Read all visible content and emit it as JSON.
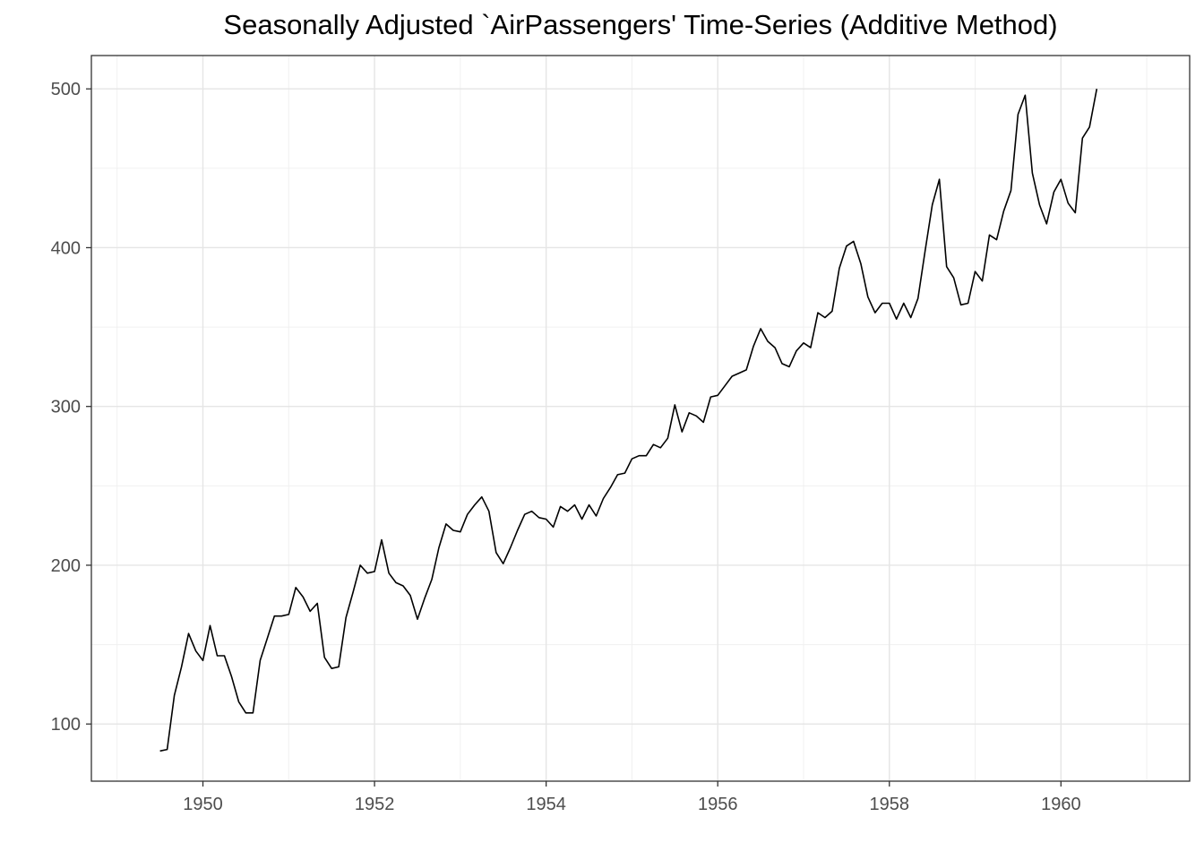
{
  "chart_data": {
    "type": "line",
    "title": "Seasonally Adjusted `AirPassengers' Time-Series (Additive Method)",
    "xlabel": "",
    "ylabel": "",
    "xlim": [
      1948.7,
      1961.5
    ],
    "ylim": [
      64,
      521
    ],
    "x_ticks": [
      1950,
      1952,
      1954,
      1956,
      1958,
      1960
    ],
    "x_tick_labels": [
      "1950",
      "1952",
      "1954",
      "1956",
      "1958",
      "1960"
    ],
    "y_ticks": [
      100,
      200,
      300,
      400,
      500
    ],
    "y_tick_labels": [
      "100",
      "200",
      "300",
      "400",
      "500"
    ],
    "grid": true,
    "line_color": "#000000",
    "series": [
      {
        "x": [
          1949.5,
          1949.583,
          1949.667,
          1949.75,
          1949.833,
          1949.917,
          1950.0,
          1950.083,
          1950.167,
          1950.25,
          1950.333,
          1950.417,
          1950.5,
          1950.583,
          1950.667,
          1950.75,
          1950.833,
          1950.917,
          1951.0,
          1951.083,
          1951.167,
          1951.25,
          1951.333,
          1951.417,
          1951.5,
          1951.583,
          1951.667,
          1951.75,
          1951.833,
          1951.917,
          1952.0,
          1952.083,
          1952.167,
          1952.25,
          1952.333,
          1952.417,
          1952.5,
          1952.583,
          1952.667,
          1952.75,
          1952.833,
          1952.917,
          1953.0,
          1953.083,
          1953.167,
          1953.25,
          1953.333,
          1953.417,
          1953.5,
          1953.583,
          1953.667,
          1953.75,
          1953.833,
          1953.917,
          1954.0,
          1954.083,
          1954.167,
          1954.25,
          1954.333,
          1954.417,
          1954.5,
          1954.583,
          1954.667,
          1954.75,
          1954.833,
          1954.917,
          1955.0,
          1955.083,
          1955.167,
          1955.25,
          1955.333,
          1955.417,
          1955.5,
          1955.583,
          1955.667,
          1955.75,
          1955.833,
          1955.917,
          1956.0,
          1956.083,
          1956.167,
          1956.25,
          1956.333,
          1956.417,
          1956.5,
          1956.583,
          1956.667,
          1956.75,
          1956.833,
          1956.917,
          1957.0,
          1957.083,
          1957.167,
          1957.25,
          1957.333,
          1957.417,
          1957.5,
          1957.583,
          1957.667,
          1957.75,
          1957.833,
          1957.917,
          1958.0,
          1958.083,
          1958.167,
          1958.25,
          1958.333,
          1958.417,
          1958.5,
          1958.583,
          1958.667,
          1958.75,
          1958.833,
          1958.917,
          1959.0,
          1959.083,
          1959.167,
          1959.25,
          1959.333,
          1959.417,
          1959.5,
          1959.583,
          1959.667,
          1959.75,
          1959.833,
          1959.917,
          1960.0,
          1960.083,
          1960.167,
          1960.25,
          1960.333,
          1960.417
        ],
        "values": [
          83,
          84,
          118,
          136,
          157,
          146,
          140,
          162,
          143,
          143,
          130,
          114,
          107,
          107,
          140,
          154,
          168,
          168,
          169,
          186,
          180,
          171,
          176,
          142,
          135,
          136,
          167,
          183,
          200,
          195,
          196,
          216,
          195,
          189,
          187,
          181,
          166,
          179,
          191,
          211,
          226,
          222,
          221,
          232,
          238,
          243,
          234,
          208,
          201,
          211,
          222,
          232,
          234,
          230,
          229,
          224,
          237,
          234,
          238,
          229,
          238,
          231,
          242,
          249,
          257,
          258,
          267,
          269,
          269,
          276,
          274,
          280,
          301,
          284,
          296,
          294,
          290,
          306,
          307,
          313,
          319,
          321,
          323,
          338,
          349,
          341,
          337,
          327,
          325,
          335,
          340,
          337,
          359,
          356,
          360,
          387,
          401,
          404,
          390,
          369,
          359,
          365,
          365,
          355,
          365,
          356,
          368,
          398,
          427,
          443,
          388,
          381,
          364,
          365,
          385,
          379,
          408,
          405,
          423,
          436,
          484,
          496,
          447,
          427,
          415,
          435,
          443,
          428,
          422,
          469,
          476,
          500
        ]
      }
    ]
  }
}
